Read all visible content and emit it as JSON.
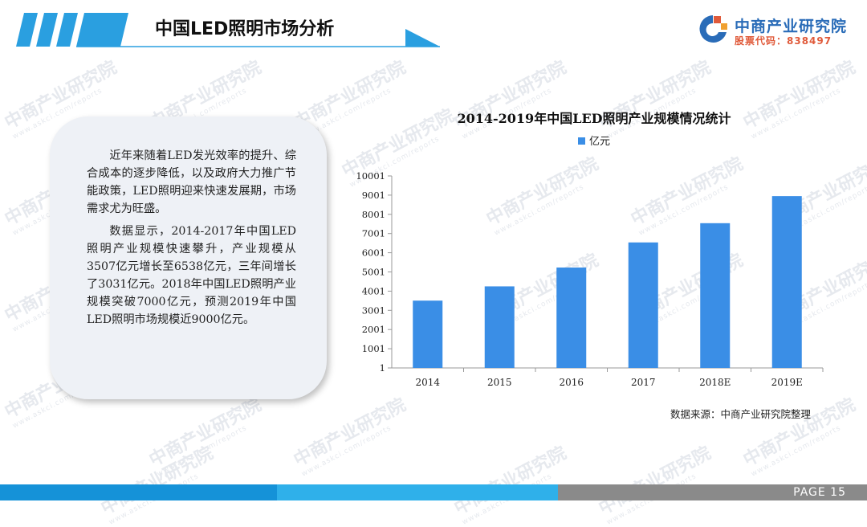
{
  "header": {
    "title": "中国LED照明市场分析"
  },
  "logo": {
    "name": "中商产业研究院",
    "code": "股票代码：838497"
  },
  "watermark": {
    "text": "中商产业研究院",
    "sub": "www.askci.com/reports"
  },
  "panel": {
    "paragraphs": [
      "近年来随着LED发光效率的提升、综合成本的逐步降低，以及政府大力推广节能政策，LED照明迎来快速发展期，市场需求尤为旺盛。",
      "数据显示，2014-2017年中国LED照明产业规模快速攀升，产业规模从3507亿元增长至6538亿元，三年间增长了3031亿元。2018年中国LED照明产业规模突破7000亿元，预测2019年中国LED照明市场规模近9000亿元。"
    ]
  },
  "chart_data": {
    "type": "bar",
    "title": "2014-2019年中国LED照明产业规模情况统计",
    "legend": {
      "position": "top",
      "entries": [
        "亿元"
      ]
    },
    "categories": [
      "2014",
      "2015",
      "2016",
      "2017",
      "2018E",
      "2019E"
    ],
    "series": [
      {
        "name": "亿元",
        "values": [
          3507,
          4250,
          5230,
          6538,
          7540,
          8950
        ]
      }
    ],
    "ylim": [
      1,
      10001
    ],
    "yticks": [
      "1",
      "1001",
      "2001",
      "3001",
      "4001",
      "5001",
      "6001",
      "7001",
      "8001",
      "9001",
      "10001"
    ],
    "grid": false,
    "bar_color": "#3a8ee6"
  },
  "source": "数据来源：中商产业研究院整理",
  "footer": {
    "page_label": "PAGE  15"
  }
}
